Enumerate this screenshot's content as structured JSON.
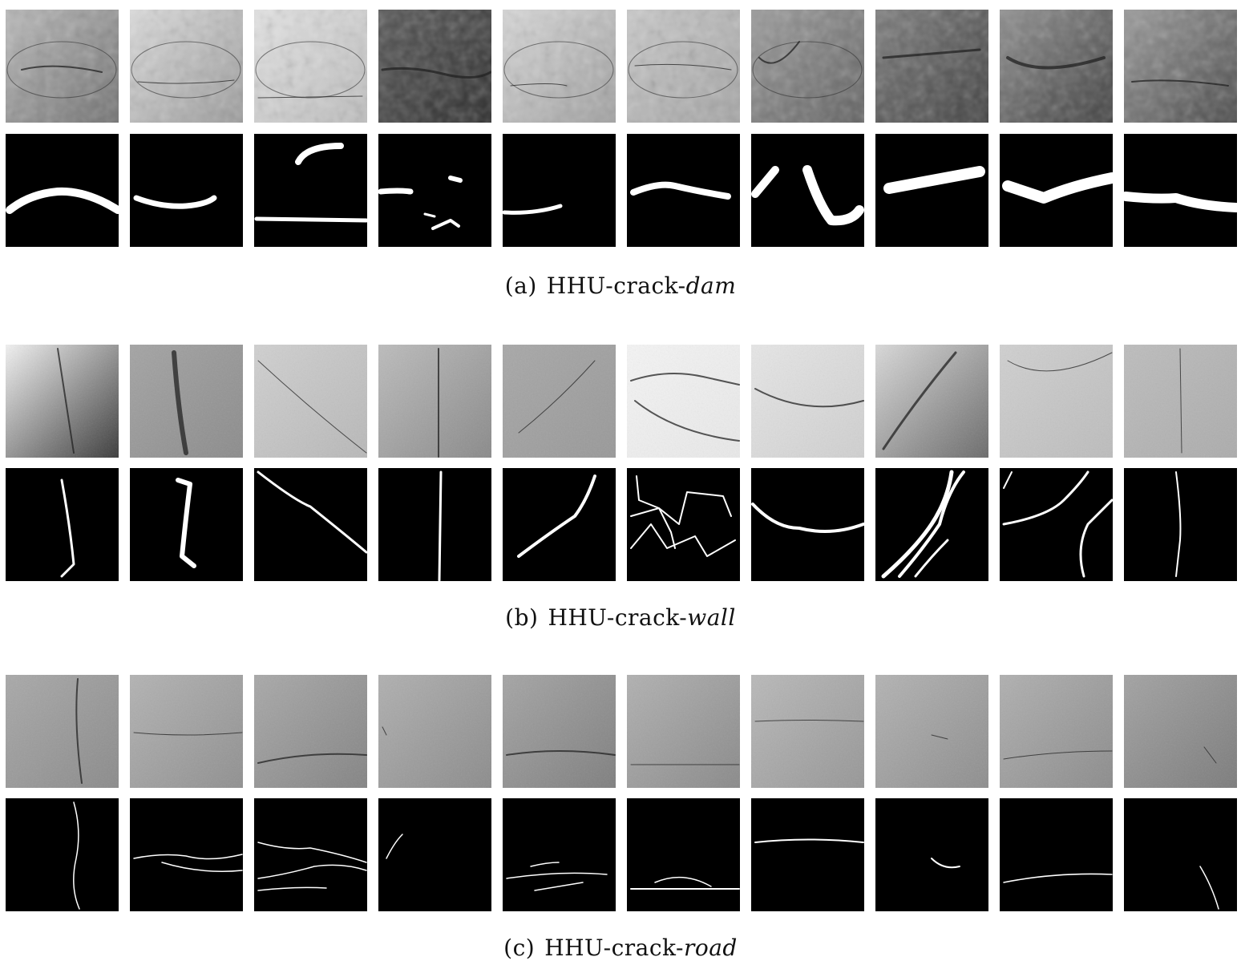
{
  "figure": {
    "panels": [
      {
        "id": "dam",
        "label": "(a)",
        "prefix": "HHU-crack-",
        "suffix": "dam"
      },
      {
        "id": "wall",
        "label": "(b)",
        "prefix": "HHU-crack-",
        "suffix": "wall"
      },
      {
        "id": "road",
        "label": "(c)",
        "prefix": "HHU-crack-",
        "suffix": "road"
      }
    ],
    "columns_per_row": 10,
    "mask_colors": {
      "background": "#000000",
      "crack": "#ffffff"
    }
  }
}
